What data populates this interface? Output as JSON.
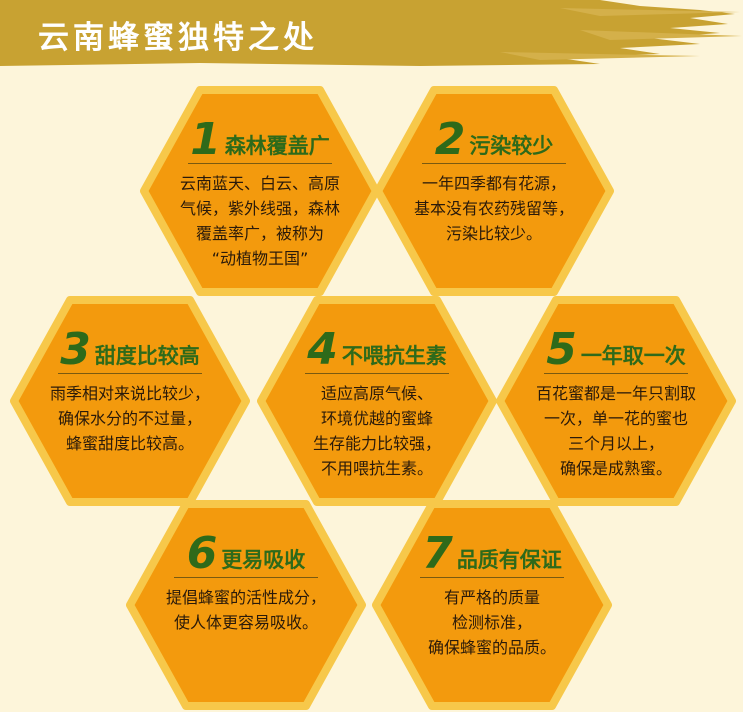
{
  "banner": {
    "title": "云南蜂蜜独特之处"
  },
  "colors": {
    "background": "#fdf5da",
    "banner": "#c8a232",
    "hex_border": "#f7c84a",
    "hex_fill": "#f39a0d",
    "heading_green": "#2e6a1a"
  },
  "hexagons": [
    {
      "number": "1",
      "title": "森林覆盖广",
      "lines": [
        "云南蓝天、白云、高原",
        "气候，紫外线强，森林",
        "覆盖率广，被称为",
        "“动植物王国”"
      ]
    },
    {
      "number": "2",
      "title": "污染较少",
      "lines": [
        "一年四季都有花源，",
        "基本没有农药残留等，",
        "污染比较少。"
      ]
    },
    {
      "number": "3",
      "title": "甜度比较高",
      "lines": [
        "雨季相对来说比较少，",
        "确保水分的不过量，",
        "蜂蜜甜度比较高。"
      ]
    },
    {
      "number": "4",
      "title": "不喂抗生素",
      "lines": [
        "适应高原气候、",
        "环境优越的蜜蜂",
        "生存能力比较强，",
        "不用喂抗生素。"
      ]
    },
    {
      "number": "5",
      "title": "一年取一次",
      "lines": [
        "百花蜜都是一年只割取",
        "一次，单一花的蜜也",
        "三个月以上，",
        "确保是成熟蜜。"
      ]
    },
    {
      "number": "6",
      "title": "更易吸收",
      "lines": [
        "提倡蜂蜜的活性成分，",
        "使人体更容易吸收。"
      ]
    },
    {
      "number": "7",
      "title": "品质有保证",
      "lines": [
        "有严格的质量",
        "检测标准，",
        "确保蜂蜜的品质。"
      ]
    }
  ]
}
